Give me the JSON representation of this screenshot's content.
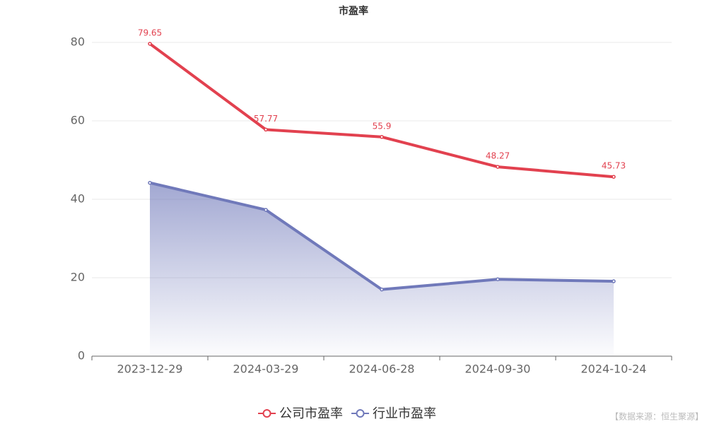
{
  "chart_data": {
    "type": "line",
    "title": "市盈率",
    "categories": [
      "2023-12-29",
      "2024-03-29",
      "2024-06-28",
      "2024-09-30",
      "2024-10-24"
    ],
    "series": [
      {
        "name": "公司市盈率",
        "color": "#e2414f",
        "values": [
          79.65,
          57.77,
          55.9,
          48.27,
          45.73
        ],
        "labels": true,
        "area": false
      },
      {
        "name": "行业市盈率",
        "color": "#7079ba",
        "values": [
          44.2,
          37.3,
          17.0,
          19.6,
          19.1
        ],
        "labels": false,
        "area": true
      }
    ],
    "ylim": [
      0,
      80
    ],
    "yticks": [
      0,
      20,
      40,
      60,
      80
    ],
    "grid": true,
    "legend": "bottom",
    "source": "【数据来源：恒生聚源】"
  }
}
